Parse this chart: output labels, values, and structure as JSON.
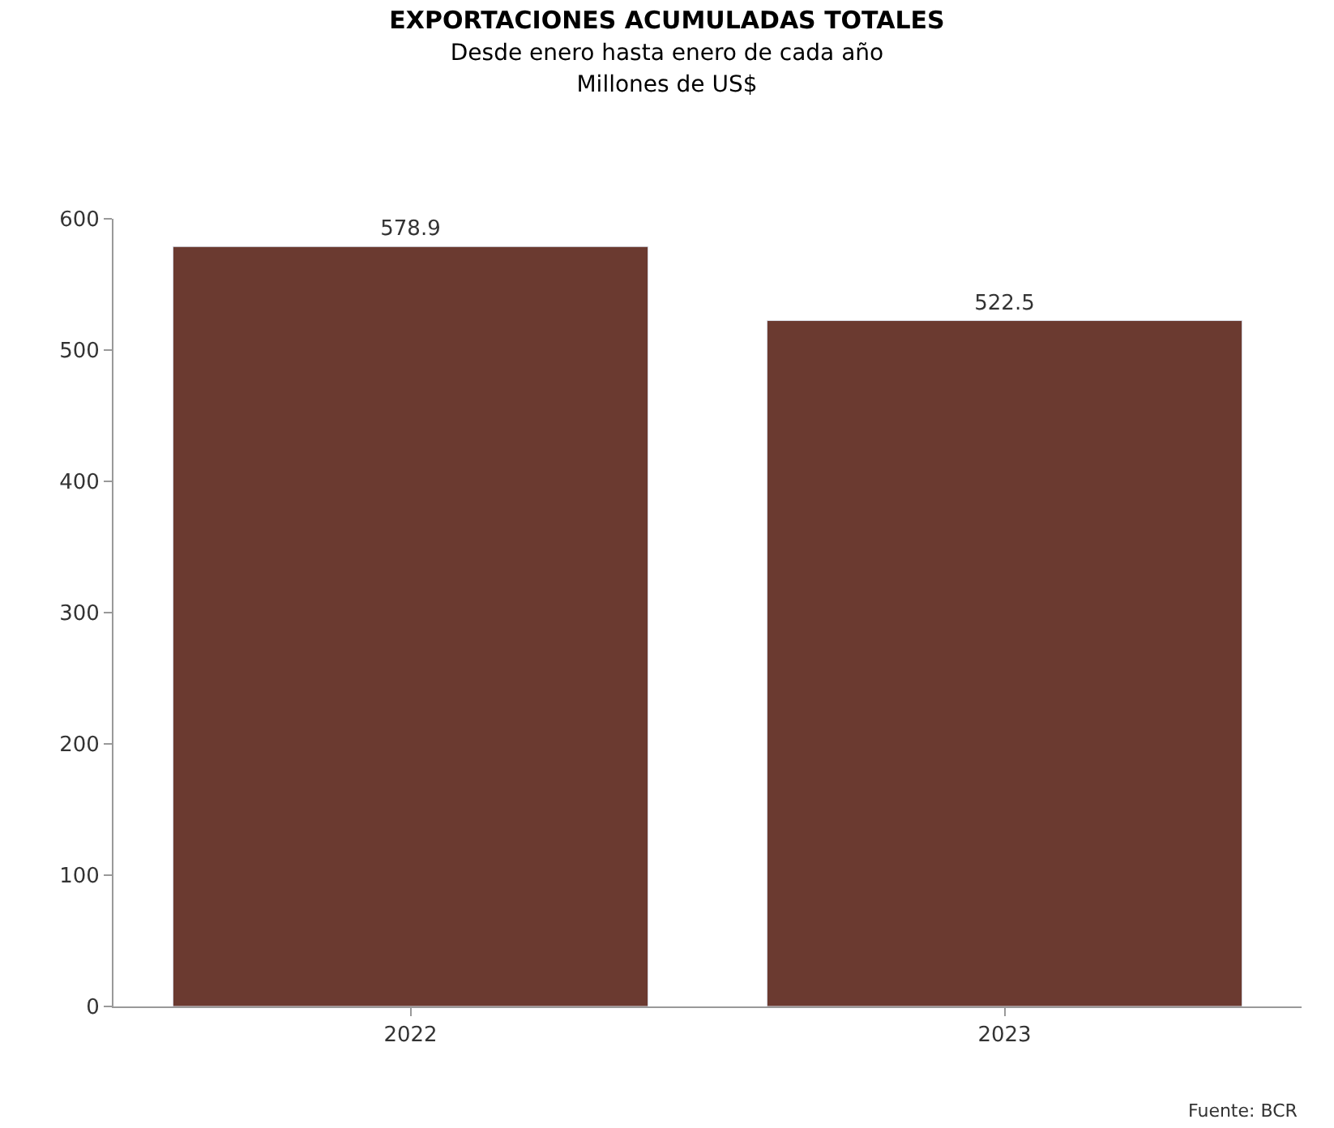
{
  "chart_data": {
    "type": "bar",
    "title": "EXPORTACIONES ACUMULADAS TOTALES",
    "subtitle": "Desde enero hasta enero de cada año\nMillones de US$",
    "categories": [
      "2022",
      "2023"
    ],
    "values": [
      578.9,
      522.5
    ],
    "color": "#6b3a30",
    "ylim": [
      0,
      600
    ],
    "yticks": [
      0,
      100,
      200,
      300,
      400,
      500,
      600
    ],
    "grid": false,
    "data_labels": true,
    "annotations": [
      "Fuente: BCR"
    ]
  }
}
